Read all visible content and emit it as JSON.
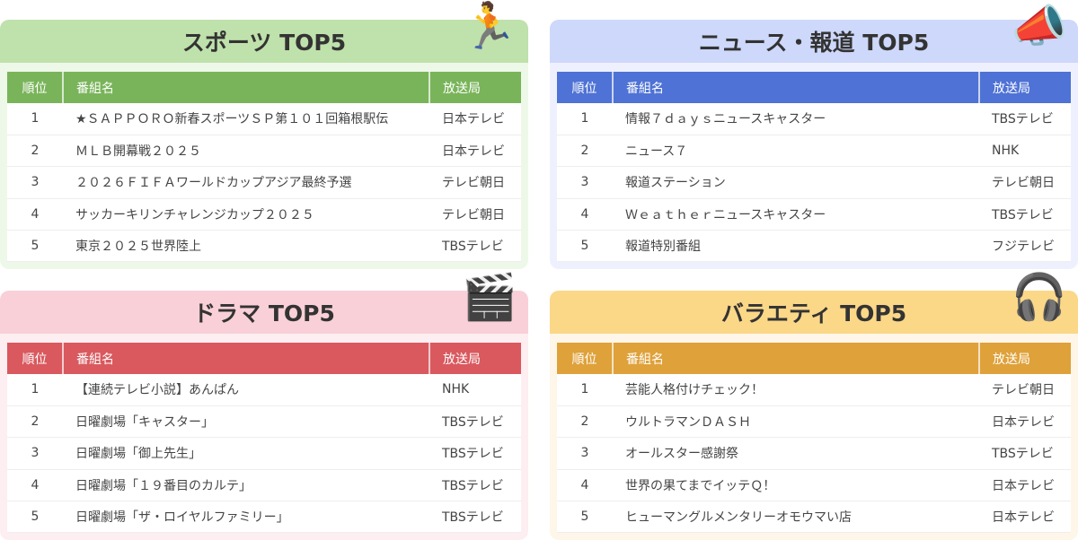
{
  "headers": {
    "rank": "順位",
    "program": "番組名",
    "station": "放送局"
  },
  "panels": [
    {
      "id": "sports",
      "title": "スポーツ TOP5",
      "icon": "running-person-icon",
      "band_color": "#bfe1ab",
      "header_color": "#79b45a",
      "bg": "#eef8e9",
      "rows": [
        [
          "1",
          "★ＳＡＰＰＯＲＯ新春スポーツＳＰ第１０１回箱根駅伝",
          "日本テレビ"
        ],
        [
          "2",
          "ＭＬＢ開幕戦２０２５",
          "日本テレビ"
        ],
        [
          "3",
          "２０２６ＦＩＦＡワールドカップアジア最終予選",
          "テレビ朝日"
        ],
        [
          "4",
          "サッカーキリンチャレンジカップ２０２５",
          "テレビ朝日"
        ],
        [
          "5",
          "東京２０２５世界陸上",
          "TBSテレビ"
        ]
      ]
    },
    {
      "id": "news",
      "title": "ニュース・報道 TOP5",
      "icon": "newspaper-megaphone-icon",
      "band_color": "#cdd8fa",
      "header_color": "#4e72d5",
      "bg": "#eef1fd",
      "rows": [
        [
          "1",
          "情報７ｄａｙｓニュースキャスター",
          "TBSテレビ"
        ],
        [
          "2",
          "ニュース７",
          "NHK"
        ],
        [
          "3",
          "報道ステーション",
          "テレビ朝日"
        ],
        [
          "4",
          "Ｗｅａｔｈｅｒニュースキャスター",
          "TBSテレビ"
        ],
        [
          "5",
          "報道特別番組",
          "フジテレビ"
        ]
      ]
    },
    {
      "id": "drama",
      "title": "ドラマ TOP5",
      "icon": "clapperboard-heart-icon",
      "band_color": "#f9d0d8",
      "header_color": "#d9595e",
      "bg": "#fdeef1",
      "rows": [
        [
          "1",
          "【連続テレビ小説】あんぱん",
          "NHK"
        ],
        [
          "2",
          "日曜劇場「キャスター」",
          "TBSテレビ"
        ],
        [
          "3",
          "日曜劇場「御上先生」",
          "TBSテレビ"
        ],
        [
          "4",
          "日曜劇場「１９番目のカルテ」",
          "TBSテレビ"
        ],
        [
          "5",
          "日曜劇場「ザ・ロイヤルファミリー」",
          "TBSテレビ"
        ]
      ]
    },
    {
      "id": "variety",
      "title": "バラエティ TOP5",
      "icon": "star-headphones-icon",
      "band_color": "#fbd788",
      "header_color": "#dfa13a",
      "bg": "#fef6e8",
      "rows": [
        [
          "1",
          "芸能人格付けチェック！",
          "テレビ朝日"
        ],
        [
          "2",
          "ウルトラマンＤＡＳＨ",
          "日本テレビ"
        ],
        [
          "3",
          "オールスター感謝祭",
          "TBSテレビ"
        ],
        [
          "4",
          "世界の果てまでイッテＱ！",
          "日本テレビ"
        ],
        [
          "5",
          "ヒューマングルメンタリーオモウマい店",
          "日本テレビ"
        ]
      ]
    }
  ]
}
